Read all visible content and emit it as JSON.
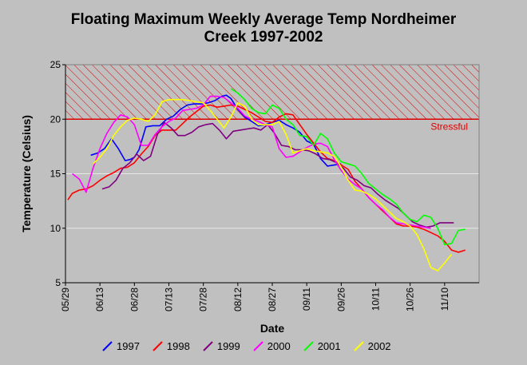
{
  "chart_data": {
    "type": "line",
    "title": "Floating Maximum Weekly Average Temp Nordheimer Creek 1997-2002",
    "title_lines": [
      "Floating Maximum Weekly Average Temp Nordheimer",
      "Creek 1997-2002"
    ],
    "xlabel": "Date",
    "ylabel": "Temperature (Celsius)",
    "x_ticks": [
      "05/29",
      "06/13",
      "06/28",
      "07/13",
      "07/28",
      "08/12",
      "08/27",
      "09/11",
      "09/26",
      "10/11",
      "10/26",
      "11/10"
    ],
    "x_tick_days": [
      0,
      15,
      30,
      45,
      60,
      75,
      90,
      105,
      120,
      135,
      150,
      165
    ],
    "xlim": [
      0,
      180
    ],
    "ylim": [
      5,
      25
    ],
    "y_ticks": [
      5,
      10,
      15,
      20,
      25
    ],
    "grid": "horizontal",
    "legend_position": "bottom",
    "threshold": {
      "value": 20,
      "label": "Stressful",
      "color": "#dd0000",
      "hatch_range": [
        20,
        25
      ]
    },
    "series": [
      {
        "name": "1997",
        "color": "#0000ff",
        "x": [
          11,
          14,
          17,
          20,
          23,
          26,
          28,
          30,
          32,
          35,
          38,
          41,
          44,
          47,
          50,
          53,
          56,
          59,
          62,
          65,
          68,
          70,
          72,
          75,
          78,
          81,
          84,
          87,
          90,
          93,
          96,
          99,
          102,
          105,
          108,
          111,
          114,
          117,
          120
        ],
        "y": [
          16.7,
          16.9,
          17.3,
          18.2,
          17.3,
          16.2,
          16.3,
          16.5,
          17.2,
          19.3,
          19.4,
          19.4,
          20.0,
          20.3,
          20.9,
          21.3,
          21.4,
          21.4,
          21.5,
          21.7,
          22.1,
          22.2,
          21.9,
          20.9,
          20.2,
          19.8,
          19.4,
          19.5,
          19.7,
          19.9,
          19.5,
          19.2,
          18.8,
          18.0,
          17.7,
          16.4,
          15.7,
          15.8,
          15.9
        ]
      },
      {
        "name": "1998",
        "color": "#ff0000",
        "x": [
          1,
          3,
          6,
          9,
          12,
          15,
          18,
          21,
          24,
          27,
          30,
          33,
          36,
          39,
          42,
          45,
          48,
          51,
          54,
          57,
          60,
          63,
          66,
          69,
          72,
          75,
          78,
          81,
          84,
          87,
          90,
          93,
          96,
          99,
          102,
          105,
          108,
          111,
          114,
          117,
          120,
          123,
          126,
          129,
          132,
          135,
          138,
          141,
          144,
          147,
          150,
          153,
          156,
          159,
          162,
          165,
          168,
          171,
          174
        ],
        "y": [
          12.6,
          13.2,
          13.5,
          13.6,
          13.9,
          14.4,
          14.8,
          15.1,
          15.5,
          15.6,
          16.0,
          16.8,
          17.5,
          18.5,
          19.0,
          19.0,
          19.0,
          19.6,
          20.2,
          20.7,
          21.2,
          21.3,
          21.1,
          21.2,
          21.3,
          21.2,
          20.9,
          20.6,
          20.2,
          19.8,
          19.7,
          20.2,
          20.5,
          20.4,
          19.5,
          18.6,
          17.8,
          17.0,
          16.4,
          16.2,
          15.8,
          15.4,
          14.3,
          13.6,
          12.8,
          12.2,
          11.6,
          11.0,
          10.4,
          10.2,
          10.2,
          10.1,
          9.9,
          9.6,
          9.3,
          8.8,
          8.0,
          7.8,
          8.0
        ]
      },
      {
        "name": "1999",
        "color": "#800080",
        "x": [
          16,
          19,
          22,
          25,
          28,
          31,
          34,
          37,
          40,
          43,
          46,
          49,
          52,
          55,
          58,
          61,
          64,
          67,
          70,
          73,
          76,
          79,
          82,
          85,
          88,
          91,
          94,
          97,
          100,
          103,
          106,
          109,
          112,
          115,
          118,
          121,
          124,
          127,
          130,
          133,
          136,
          139,
          142,
          145,
          148,
          151,
          154,
          157,
          160,
          163,
          166,
          169
        ],
        "y": [
          13.6,
          13.8,
          14.4,
          15.5,
          16.0,
          16.8,
          16.2,
          16.6,
          18.6,
          19.7,
          19.2,
          18.5,
          18.5,
          18.8,
          19.3,
          19.5,
          19.6,
          19.0,
          18.2,
          18.9,
          19.0,
          19.1,
          19.2,
          19.0,
          19.5,
          18.7,
          17.6,
          17.5,
          17.2,
          17.2,
          17.1,
          16.8,
          16.4,
          16.3,
          16.0,
          15.5,
          14.7,
          14.4,
          13.9,
          13.7,
          13.1,
          12.6,
          12.2,
          11.8,
          11.2,
          10.6,
          10.3,
          10.1,
          10.2,
          10.5,
          10.5,
          10.5
        ]
      },
      {
        "name": "2000",
        "color": "#ff00ff",
        "x": [
          3,
          6,
          9,
          12,
          15,
          18,
          21,
          24,
          27,
          30,
          33,
          36,
          39,
          42,
          45,
          48,
          51,
          54,
          57,
          60,
          63,
          66,
          69,
          72,
          75,
          78,
          81,
          84,
          87,
          90,
          93,
          96,
          99,
          102,
          105,
          108,
          111,
          114,
          117,
          120,
          123,
          126,
          129,
          132,
          135,
          138,
          141,
          144,
          147,
          150,
          153,
          156,
          159
        ],
        "y": [
          15.0,
          14.5,
          13.3,
          15.5,
          17.3,
          18.7,
          19.7,
          20.4,
          20.2,
          19.5,
          17.6,
          17.6,
          18.6,
          19.3,
          19.8,
          20.1,
          20.8,
          20.9,
          21.0,
          21.3,
          22.1,
          22.1,
          22.0,
          21.5,
          21.0,
          20.3,
          20.0,
          19.8,
          19.5,
          19.3,
          17.3,
          16.5,
          16.6,
          17.0,
          17.4,
          17.7,
          17.8,
          17.5,
          16.3,
          15.3,
          14.5,
          14.0,
          13.6,
          12.8,
          12.2,
          11.7,
          11.0,
          10.5,
          10.4,
          10.3,
          10.2,
          10.1,
          10.0
        ]
      },
      {
        "name": "2001",
        "color": "#00ff00",
        "x": [
          72,
          75,
          78,
          81,
          84,
          87,
          90,
          93,
          96,
          99,
          102,
          105,
          108,
          111,
          114,
          117,
          120,
          123,
          126,
          129,
          132,
          135,
          138,
          141,
          144,
          147,
          150,
          153,
          156,
          159,
          162,
          165,
          168,
          171,
          174
        ],
        "y": [
          22.8,
          22.4,
          21.8,
          21.0,
          20.6,
          20.5,
          21.3,
          21.0,
          20.0,
          19.5,
          18.5,
          18.4,
          17.6,
          18.7,
          18.2,
          16.9,
          16.1,
          15.9,
          15.7,
          15.0,
          14.1,
          13.6,
          13.1,
          12.7,
          12.2,
          11.4,
          10.8,
          10.6,
          11.2,
          11.0,
          10.0,
          8.5,
          8.6,
          9.8,
          9.9
        ]
      },
      {
        "name": "2002",
        "color": "#ffff00",
        "x": [
          12,
          15,
          18,
          21,
          24,
          27,
          30,
          33,
          36,
          39,
          42,
          45,
          48,
          51,
          54,
          57,
          60,
          63,
          66,
          69,
          72,
          75,
          78,
          81,
          84,
          87,
          90,
          93,
          96,
          99,
          102,
          105,
          108,
          111,
          114,
          117,
          120,
          123,
          126,
          129,
          132,
          135,
          138,
          141,
          144,
          147,
          150,
          153,
          156,
          159,
          162,
          165,
          168
        ],
        "y": [
          15.9,
          16.5,
          17.3,
          18.5,
          19.3,
          19.9,
          20.1,
          20.0,
          19.8,
          20.4,
          21.6,
          21.8,
          21.8,
          21.8,
          21.7,
          21.6,
          21.5,
          20.8,
          20.0,
          19.2,
          20.2,
          21.5,
          21.2,
          20.0,
          19.5,
          19.5,
          19.5,
          19.8,
          18.6,
          16.9,
          17.1,
          17.3,
          17.1,
          17.0,
          16.9,
          16.6,
          15.6,
          14.4,
          13.5,
          13.4,
          13.1,
          12.7,
          12.1,
          11.5,
          10.9,
          10.6,
          10.2,
          9.4,
          8.1,
          6.4,
          6.1,
          6.8,
          7.6
        ]
      }
    ]
  }
}
